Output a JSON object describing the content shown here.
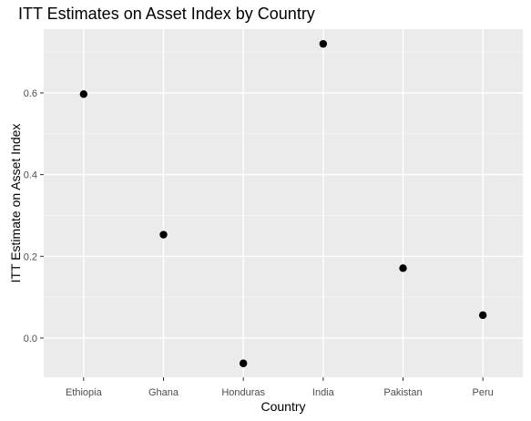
{
  "chart_data": {
    "type": "scatter",
    "title": "ITT Estimates on Asset Index by Country",
    "xlabel": "Country",
    "ylabel": "ITT Estimate on Asset Index",
    "categories": [
      "Ethiopia",
      "Ghana",
      "Honduras",
      "India",
      "Pakistan",
      "Peru"
    ],
    "values": [
      0.597,
      0.253,
      -0.062,
      0.72,
      0.171,
      0.056
    ],
    "ylim": [
      -0.096,
      0.756
    ],
    "yticks": [
      0.0,
      0.2,
      0.4,
      0.6
    ],
    "ytick_labels": [
      "0.0",
      "0.2",
      "0.4",
      "0.6"
    ],
    "grid": true,
    "legend": "none",
    "colors": {
      "panel_background": "#EBEBEB",
      "grid_major": "#FFFFFF",
      "grid_minor": "#F5F5F5",
      "point": "#000000",
      "tick_label": "#4D4D4D",
      "tick_mark": "#333333"
    }
  }
}
